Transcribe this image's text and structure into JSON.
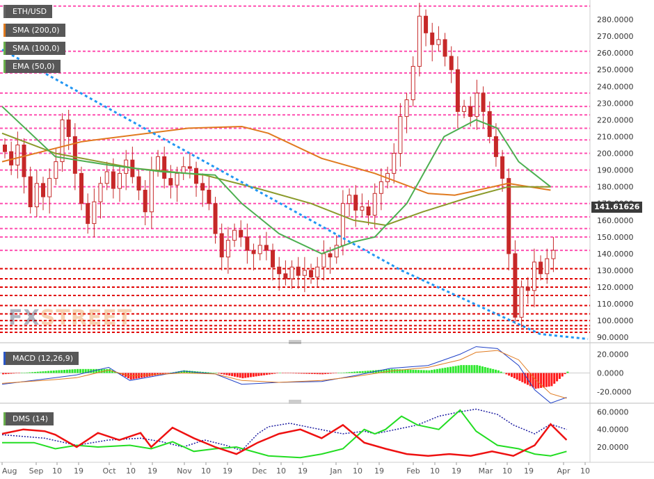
{
  "symbol": "ETH/USD",
  "indicators": {
    "sma200": "SMA (200,0)",
    "sma100": "SMA (100,0)",
    "ema50": "EMA (50,0)",
    "macd": "MACD (12,26,9)",
    "dms": "DMS (14)"
  },
  "watermark": {
    "fx": "FX",
    "street": "STREET"
  },
  "current_price": "141.61626",
  "colors": {
    "candle": "#c62828",
    "sma200": "#e07a1f",
    "sma100": "#8a9a2a",
    "ema50": "#4caf50",
    "trend": "#2196f3",
    "resistance": "#ff4fb0",
    "support": "#e00000",
    "macd": "#1e40c8",
    "signal": "#e07a1f",
    "hist_pos": "#2ee82e",
    "hist_neg": "#ff1a1a",
    "dms_plus": "#22dd22",
    "dms_minus": "#ee1111",
    "adx": "#1a1aa0"
  },
  "chart_data": [
    {
      "type": "candlestick",
      "title": "ETH/USD",
      "ylim": [
        88,
        290
      ],
      "y_ticks": [
        "280.0000",
        "270.0000",
        "260.0000",
        "250.0000",
        "240.0000",
        "230.0000",
        "220.0000",
        "210.0000",
        "200.0000",
        "190.0000",
        "180.0000",
        "170.0000",
        "160.0000",
        "150.0000",
        "140.0000",
        "130.0000",
        "120.0000",
        "110.0000",
        "100.0000",
        "90.0000"
      ],
      "x_ticks": [
        "Aug",
        "Sep",
        "10",
        "19",
        "Oct",
        "10",
        "19",
        "Nov",
        "10",
        "19",
        "Dec",
        "10",
        "19",
        "Jan",
        "10",
        "19",
        "Feb",
        "10",
        "19",
        "Mar",
        "10",
        "19",
        "Apr",
        "10"
      ],
      "resistance_levels": [
        288,
        261,
        248,
        236,
        228,
        223,
        215,
        208,
        200,
        190,
        180,
        170,
        162,
        155,
        150,
        142
      ],
      "support_levels": [
        131,
        125,
        120,
        115,
        109,
        104,
        100,
        97,
        95,
        93
      ],
      "series": [
        {
          "name": "SMA (200,0)",
          "values": [
            [
              0,
              195
            ],
            [
              15,
              207
            ],
            [
              35,
              215
            ],
            [
              45,
              216
            ],
            [
              50,
              212
            ],
            [
              60,
              197
            ],
            [
              70,
              188
            ],
            [
              80,
              176
            ],
            [
              85,
              175
            ],
            [
              88,
              177
            ],
            [
              95,
              182
            ],
            [
              103,
              178
            ]
          ]
        },
        {
          "name": "SMA (100,0)",
          "values": [
            [
              0,
              212
            ],
            [
              10,
              200
            ],
            [
              25,
              191
            ],
            [
              38,
              187
            ],
            [
              48,
              179
            ],
            [
              58,
              170
            ],
            [
              66,
              160
            ],
            [
              72,
              157
            ],
            [
              79,
              165
            ],
            [
              88,
              174
            ],
            [
              95,
              180
            ],
            [
              103,
              180
            ]
          ]
        },
        {
          "name": "EMA (50,0)",
          "values": [
            [
              0,
              228
            ],
            [
              10,
              198
            ],
            [
              20,
              193
            ],
            [
              30,
              189
            ],
            [
              40,
              187
            ],
            [
              45,
              170
            ],
            [
              52,
              152
            ],
            [
              60,
              140
            ],
            [
              66,
              147
            ],
            [
              70,
              150
            ],
            [
              76,
              170
            ],
            [
              83,
              210
            ],
            [
              89,
              220
            ],
            [
              93,
              215
            ],
            [
              97,
              195
            ],
            [
              103,
              180
            ]
          ]
        },
        {
          "name": "trendline",
          "values": [
            [
              0,
              262
            ],
            [
              75,
              130
            ],
            [
              101,
              92
            ],
            [
              110,
              89
            ]
          ]
        }
      ],
      "candles_close": [
        201,
        193,
        205,
        186,
        168,
        182,
        174,
        185,
        195,
        220,
        210,
        188,
        170,
        158,
        171,
        182,
        189,
        179,
        188,
        196,
        186,
        178,
        165,
        190,
        198,
        185,
        181,
        188,
        192,
        191,
        182,
        178,
        170,
        152,
        138,
        148,
        154,
        150,
        142,
        140,
        145,
        142,
        132,
        128,
        125,
        132,
        127,
        130,
        126,
        132,
        140,
        138,
        145,
        170,
        175,
        166,
        168,
        163,
        176,
        183,
        188,
        200,
        222,
        232,
        252,
        282,
        272,
        265,
        268,
        258,
        250,
        225,
        228,
        222,
        236,
        225,
        210,
        198,
        185,
        140,
        102,
        120,
        118,
        135,
        128,
        137,
        142
      ]
    },
    {
      "type": "line",
      "title": "MACD (12,26,9)",
      "ylim": [
        -27,
        27
      ],
      "y_ticks": [
        "20.0000",
        "0.0000",
        "-20.0000"
      ],
      "series": [
        {
          "name": "MACD",
          "values": [
            [
              0,
              -12
            ],
            [
              10,
              -5
            ],
            [
              14,
              -2
            ],
            [
              20,
              6
            ],
            [
              24,
              -8
            ],
            [
              34,
              2
            ],
            [
              40,
              -1
            ],
            [
              45,
              -12
            ],
            [
              52,
              -10
            ],
            [
              60,
              -9
            ],
            [
              66,
              -3
            ],
            [
              73,
              5
            ],
            [
              80,
              8
            ],
            [
              86,
              20
            ],
            [
              89,
              28
            ],
            [
              93,
              26
            ],
            [
              97,
              8
            ],
            [
              100,
              -18
            ],
            [
              103,
              -32
            ],
            [
              106,
              -26
            ]
          ]
        },
        {
          "name": "Signal",
          "values": [
            [
              0,
              -11
            ],
            [
              10,
              -7
            ],
            [
              14,
              -5
            ],
            [
              20,
              3
            ],
            [
              24,
              -3
            ],
            [
              34,
              0
            ],
            [
              40,
              -1
            ],
            [
              45,
              -8
            ],
            [
              52,
              -10
            ],
            [
              60,
              -8
            ],
            [
              66,
              -4
            ],
            [
              73,
              2
            ],
            [
              80,
              6
            ],
            [
              86,
              14
            ],
            [
              89,
              22
            ],
            [
              93,
              24
            ],
            [
              97,
              14
            ],
            [
              100,
              -6
            ],
            [
              103,
              -22
            ],
            [
              106,
              -27
            ]
          ]
        }
      ]
    },
    {
      "type": "line",
      "title": "DMS (14)",
      "ylim": [
        5,
        65
      ],
      "y_ticks": [
        "60.0000",
        "40.0000",
        "20.0000"
      ],
      "series": [
        {
          "name": "ADX",
          "values": [
            [
              0,
              34
            ],
            [
              8,
              30
            ],
            [
              14,
              22
            ],
            [
              20,
              28
            ],
            [
              26,
              30
            ],
            [
              30,
              26
            ],
            [
              34,
              20
            ],
            [
              38,
              28
            ],
            [
              42,
              22
            ],
            [
              45,
              16
            ],
            [
              48,
              35
            ],
            [
              50,
              43
            ],
            [
              54,
              47
            ],
            [
              58,
              42
            ],
            [
              64,
              35
            ],
            [
              68,
              38
            ],
            [
              70,
              35
            ],
            [
              74,
              40
            ],
            [
              78,
              45
            ],
            [
              82,
              55
            ],
            [
              86,
              60
            ],
            [
              89,
              63
            ],
            [
              93,
              57
            ],
            [
              96,
              45
            ],
            [
              100,
              35
            ],
            [
              103,
              46
            ],
            [
              106,
              40
            ]
          ]
        },
        {
          "name": "+DI",
          "values": [
            [
              0,
              25
            ],
            [
              6,
              25
            ],
            [
              10,
              18
            ],
            [
              14,
              22
            ],
            [
              18,
              20
            ],
            [
              24,
              22
            ],
            [
              28,
              18
            ],
            [
              32,
              26
            ],
            [
              36,
              15
            ],
            [
              40,
              18
            ],
            [
              44,
              20
            ],
            [
              50,
              10
            ],
            [
              56,
              8
            ],
            [
              60,
              12
            ],
            [
              64,
              18
            ],
            [
              68,
              40
            ],
            [
              70,
              35
            ],
            [
              72,
              40
            ],
            [
              75,
              55
            ],
            [
              78,
              45
            ],
            [
              82,
              40
            ],
            [
              86,
              62
            ],
            [
              89,
              38
            ],
            [
              93,
              22
            ],
            [
              97,
              18
            ],
            [
              100,
              12
            ],
            [
              103,
              10
            ],
            [
              106,
              15
            ]
          ]
        },
        {
          "name": "-DI",
          "values": [
            [
              0,
              35
            ],
            [
              4,
              40
            ],
            [
              8,
              38
            ],
            [
              10,
              34
            ],
            [
              14,
              20
            ],
            [
              18,
              36
            ],
            [
              22,
              28
            ],
            [
              26,
              36
            ],
            [
              28,
              20
            ],
            [
              32,
              42
            ],
            [
              36,
              30
            ],
            [
              40,
              20
            ],
            [
              44,
              12
            ],
            [
              48,
              25
            ],
            [
              52,
              35
            ],
            [
              56,
              40
            ],
            [
              60,
              30
            ],
            [
              64,
              45
            ],
            [
              68,
              25
            ],
            [
              72,
              18
            ],
            [
              76,
              12
            ],
            [
              80,
              10
            ],
            [
              84,
              12
            ],
            [
              88,
              10
            ],
            [
              92,
              15
            ],
            [
              96,
              10
            ],
            [
              100,
              22
            ],
            [
              103,
              46
            ],
            [
              106,
              28
            ]
          ]
        }
      ]
    }
  ]
}
